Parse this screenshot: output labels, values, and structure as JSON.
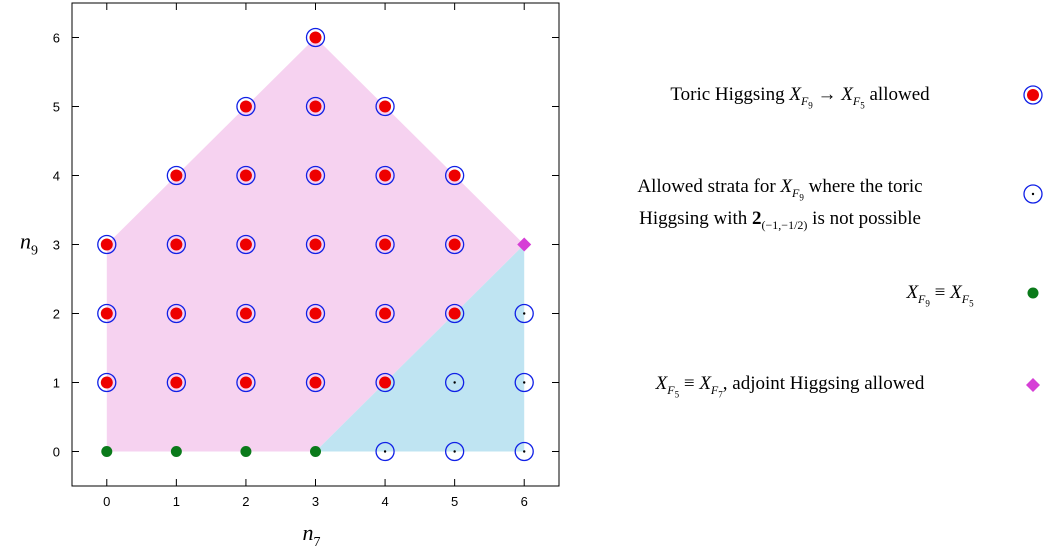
{
  "chart_data": {
    "type": "scatter",
    "xlabel": "n7",
    "ylabel": "n9",
    "xlim": [
      -0.5,
      6.5
    ],
    "ylim": [
      -0.5,
      6.5
    ],
    "xticks": [
      0,
      1,
      2,
      3,
      4,
      5,
      6
    ],
    "yticks": [
      0,
      1,
      2,
      3,
      4,
      5,
      6
    ],
    "grid": false,
    "legend_position": "right",
    "regions": [
      {
        "color": "#f6d2f0",
        "polygon": [
          [
            0,
            0
          ],
          [
            3,
            0
          ],
          [
            6,
            3
          ],
          [
            3,
            6
          ],
          [
            0,
            3
          ]
        ]
      },
      {
        "color": "#bfe4f2",
        "polygon": [
          [
            3,
            0
          ],
          [
            6,
            0
          ],
          [
            6,
            3
          ]
        ]
      }
    ],
    "series": [
      {
        "name": "Toric Higgsing X_F9 → X_F5 allowed",
        "marker": "red-dot-in-blue-circle",
        "points": [
          [
            3,
            6
          ],
          [
            2,
            5
          ],
          [
            3,
            5
          ],
          [
            4,
            5
          ],
          [
            1,
            4
          ],
          [
            2,
            4
          ],
          [
            3,
            4
          ],
          [
            4,
            4
          ],
          [
            5,
            4
          ],
          [
            0,
            3
          ],
          [
            1,
            3
          ],
          [
            2,
            3
          ],
          [
            3,
            3
          ],
          [
            4,
            3
          ],
          [
            5,
            3
          ],
          [
            0,
            2
          ],
          [
            1,
            2
          ],
          [
            2,
            2
          ],
          [
            3,
            2
          ],
          [
            4,
            2
          ],
          [
            5,
            2
          ],
          [
            0,
            1
          ],
          [
            1,
            1
          ],
          [
            2,
            1
          ],
          [
            3,
            1
          ],
          [
            4,
            1
          ]
        ]
      },
      {
        "name": "Allowed strata for X_F9 where the toric Higgsing with 2_(−1,−1/2) is not possible",
        "marker": "blue-circle-with-dot",
        "points": [
          [
            6,
            2
          ],
          [
            5,
            1
          ],
          [
            6,
            1
          ],
          [
            4,
            0
          ],
          [
            5,
            0
          ],
          [
            6,
            0
          ]
        ]
      },
      {
        "name": "X_F9 ≡ X_F5",
        "marker": "green-dot",
        "points": [
          [
            0,
            0
          ],
          [
            1,
            0
          ],
          [
            2,
            0
          ],
          [
            3,
            0
          ]
        ]
      },
      {
        "name": "X_F5 ≡ X_F7, adjoint Higgsing allowed",
        "marker": "magenta-diamond",
        "points": [
          [
            6,
            3
          ]
        ]
      }
    ]
  },
  "axis": {
    "x_var": "n",
    "x_sub": "7",
    "y_var": "n",
    "y_sub": "9"
  },
  "legend": {
    "item1": {
      "prefix": "Toric Higgsing ",
      "x": "X",
      "F": "F",
      "sub1": "9",
      "arrow": " → ",
      "sub2": "5",
      "suffix": " allowed"
    },
    "item2": {
      "line1_prefix": "Allowed strata for ",
      "x": "X",
      "F": "F",
      "sub1": "9",
      "line1_suffix": " where the toric",
      "line2_prefix": "Higgsing with ",
      "bold": "2",
      "rep_sub": "(−1,−1/2)",
      "line2_suffix": " is not possible"
    },
    "item3": {
      "x": "X",
      "F": "F",
      "sub1": "9",
      "equiv": " ≡ ",
      "sub2": "5"
    },
    "item4": {
      "x": "X",
      "F": "F",
      "sub1": "5",
      "equiv": " ≡ ",
      "sub2": "7",
      "suffix": ", adjoint Higgsing allowed"
    }
  },
  "colors": {
    "red": "#ee0000",
    "blue": "#1020e6",
    "green": "#0a7a1a",
    "magenta": "#d63fd6",
    "pink_region": "#f6d2f0",
    "blue_region": "#bfe4f2"
  }
}
